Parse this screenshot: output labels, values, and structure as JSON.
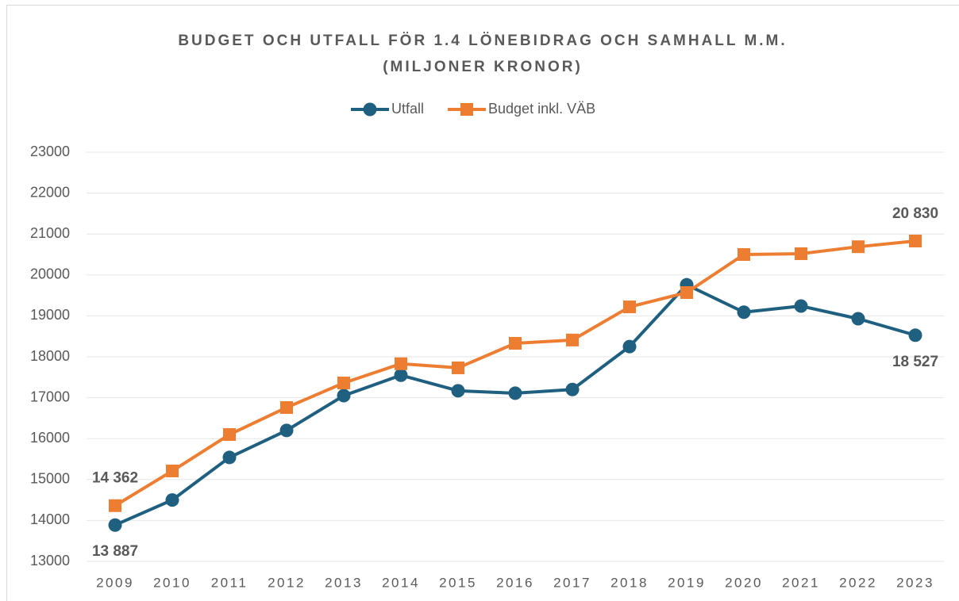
{
  "chart_data": {
    "type": "line",
    "title": [
      "BUDGET OCH UTFALL FÖR 1.4 LÖNEBIDRAG OCH SAMHALL M.M.",
      "(MILJONER KRONOR)"
    ],
    "categories": [
      "2009",
      "2010",
      "2011",
      "2012",
      "2013",
      "2014",
      "2015",
      "2016",
      "2017",
      "2018",
      "2019",
      "2020",
      "2021",
      "2022",
      "2023"
    ],
    "series": [
      {
        "name": "Utfall",
        "color": "#1f5f7f",
        "marker": "circle",
        "values": [
          13887,
          14500,
          15540,
          16200,
          17050,
          17550,
          17170,
          17110,
          17200,
          18250,
          19760,
          19090,
          19240,
          18930,
          18527
        ],
        "value_labels": [
          "13 887",
          null,
          null,
          null,
          null,
          null,
          null,
          null,
          null,
          null,
          null,
          null,
          null,
          null,
          "18 527"
        ]
      },
      {
        "name": "Budget inkl. VÄB",
        "color": "#ed7d31",
        "marker": "square",
        "values": [
          14362,
          15210,
          16100,
          16760,
          17360,
          17830,
          17730,
          18330,
          18410,
          19220,
          19570,
          20500,
          20520,
          20690,
          20830
        ],
        "value_labels": [
          "14 362",
          null,
          null,
          null,
          null,
          null,
          null,
          null,
          null,
          null,
          null,
          null,
          null,
          null,
          "20 830"
        ]
      }
    ],
    "ylim": [
      13000,
      23000
    ],
    "yticks": [
      13000,
      14000,
      15000,
      16000,
      17000,
      18000,
      19000,
      20000,
      21000,
      22000,
      23000
    ],
    "grid": true,
    "legend": "top"
  }
}
